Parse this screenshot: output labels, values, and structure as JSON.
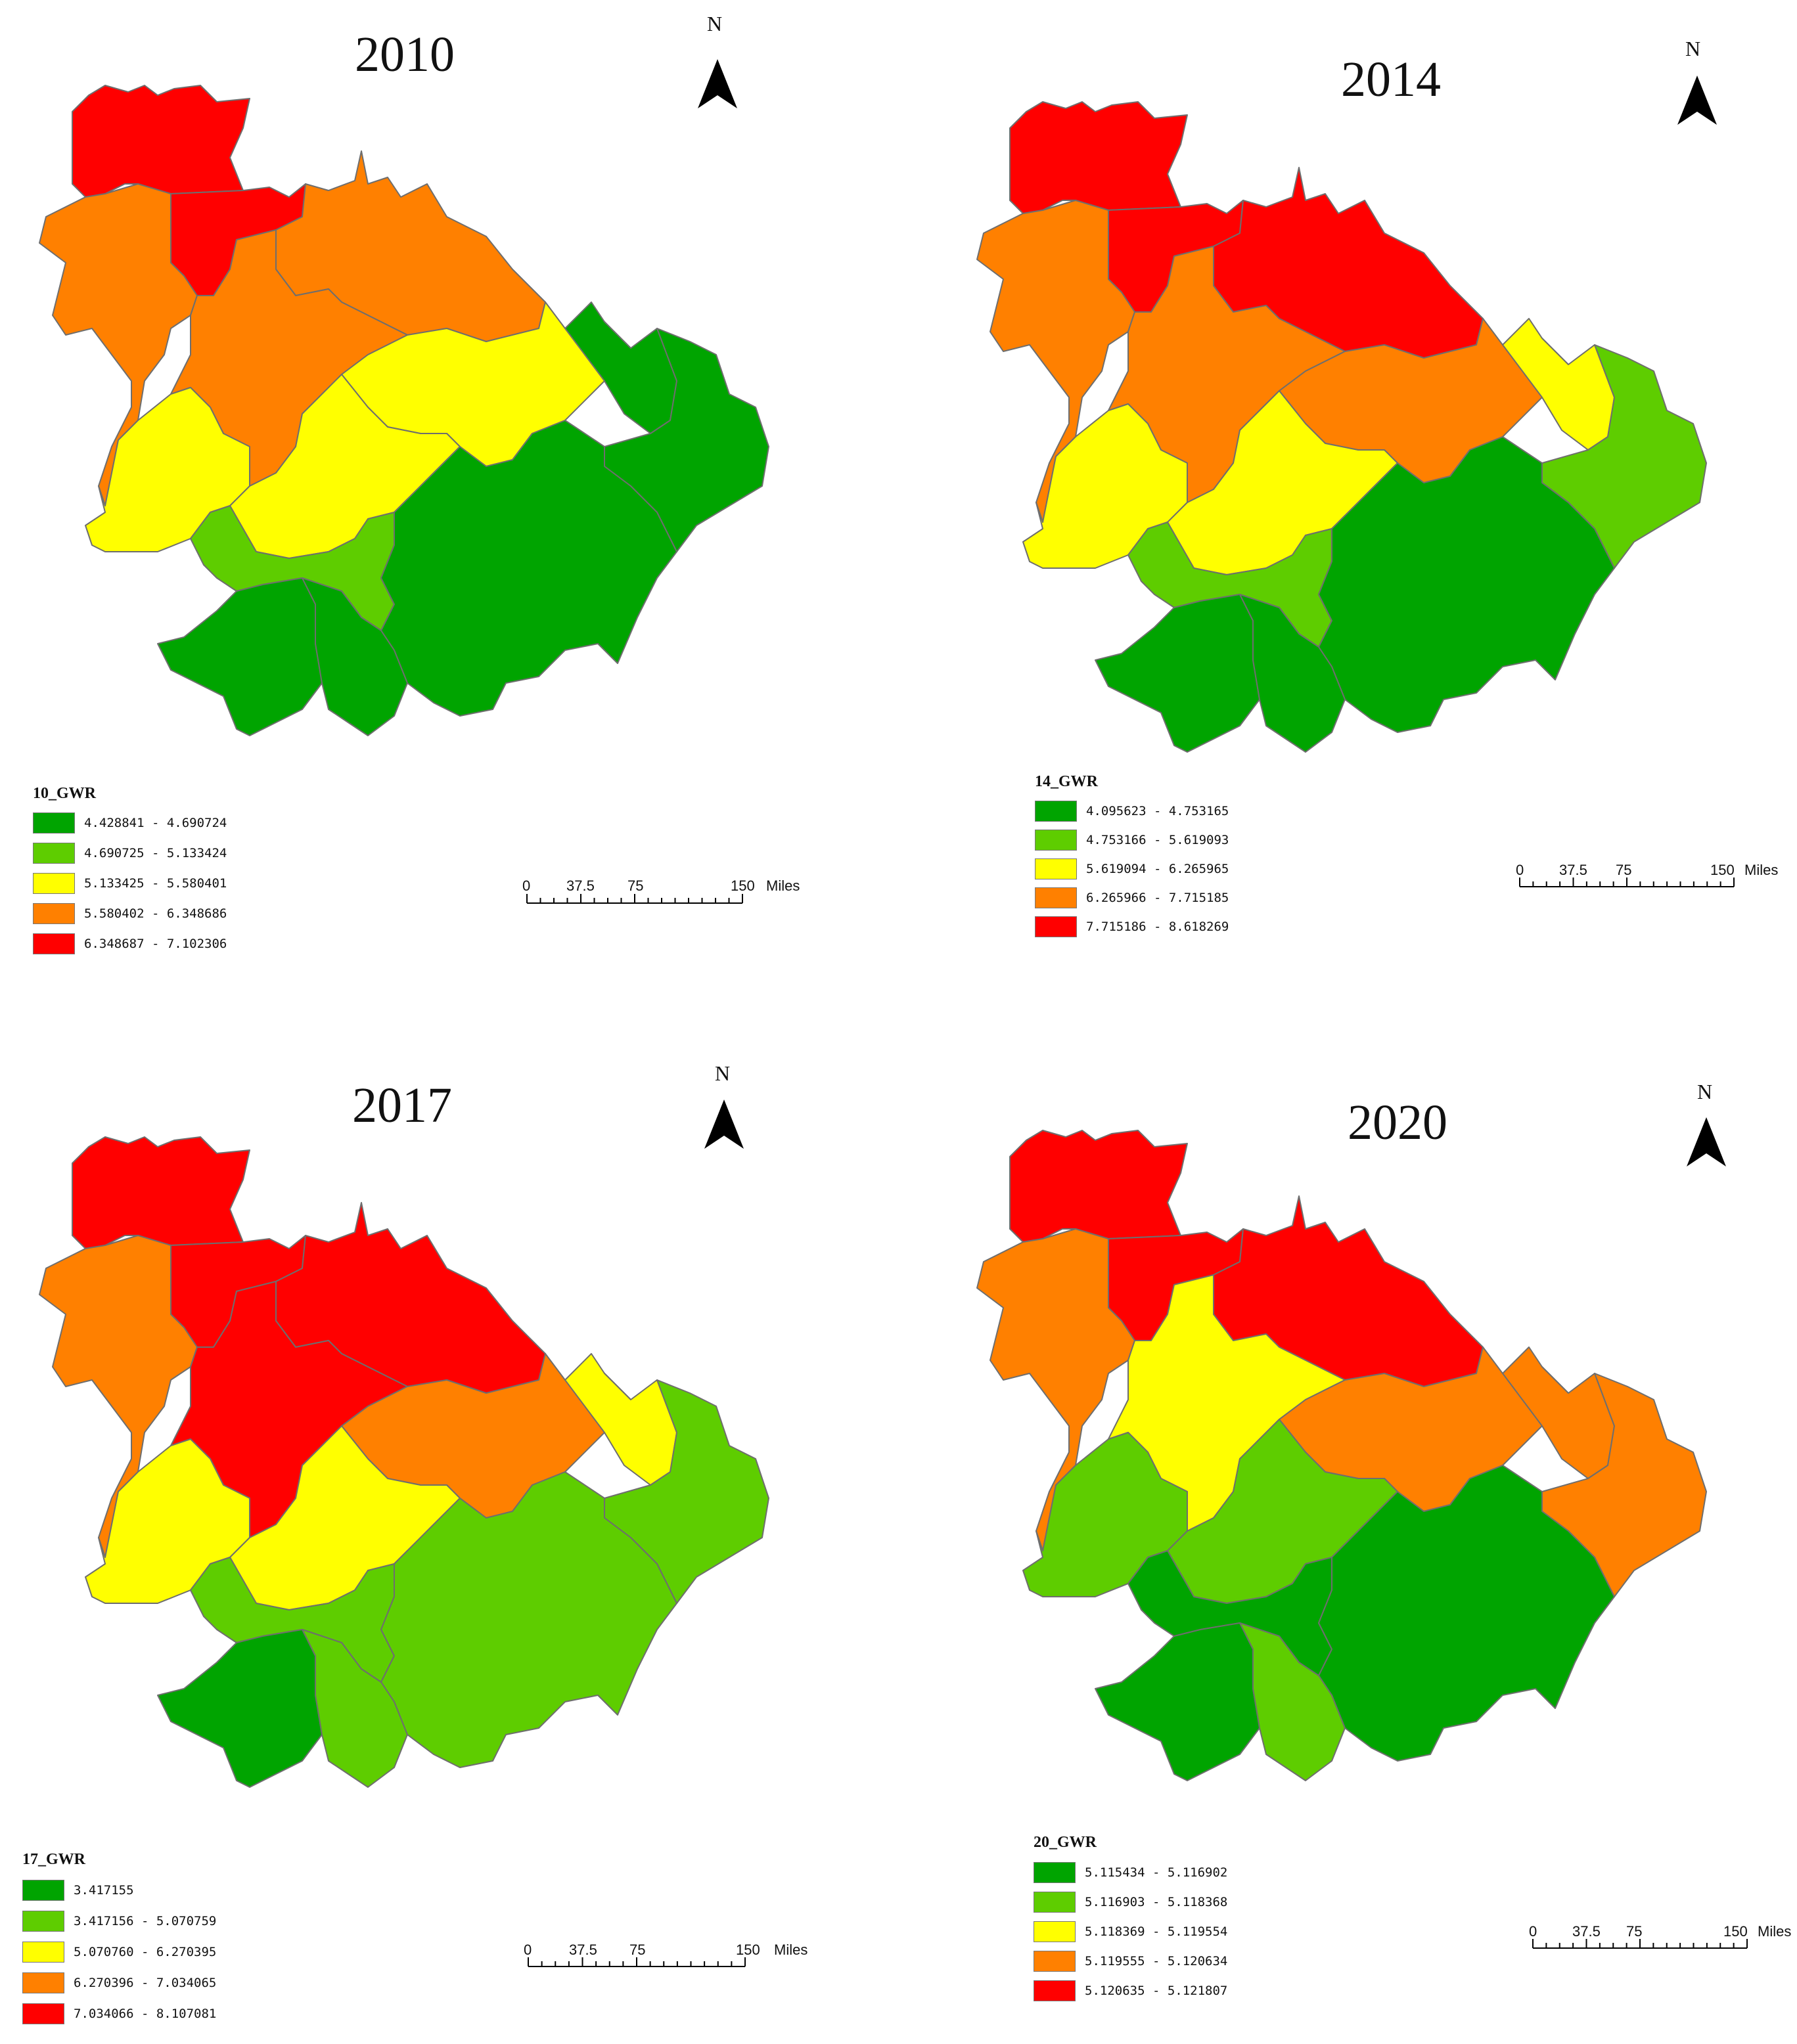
{
  "palette": {
    "green_dark": "#00a400",
    "green_light": "#5ecd00",
    "yellow": "#ffff00",
    "orange": "#ff8000",
    "red": "#ff0000"
  },
  "panels": [
    {
      "year": "2010",
      "legend_title": "10_GWR",
      "legend": [
        {
          "label": "4.428841 - 4.690724",
          "color": "#00a400"
        },
        {
          "label": "4.690725 - 5.133424",
          "color": "#5ecd00"
        },
        {
          "label": "5.133425 - 5.580401",
          "color": "#ffff00"
        },
        {
          "label": "5.580402 - 6.348686",
          "color": "#ff8000"
        },
        {
          "label": "6.348687 - 7.102306",
          "color": "#ff0000"
        }
      ],
      "region_classes": {
        "north_west": 5,
        "north_mid": 5,
        "north_east": 4,
        "west": 4,
        "centre": 4,
        "east_centre": 3,
        "west_south": 3,
        "mid_south": 3,
        "east_north": 1,
        "east_far": 1,
        "south_centre": 2,
        "south_mid": 1,
        "south_west": 1,
        "south_east": 1
      }
    },
    {
      "year": "2014",
      "legend_title": "14_GWR",
      "legend": [
        {
          "label": "4.095623 - 4.753165",
          "color": "#00a400"
        },
        {
          "label": "4.753166 - 5.619093",
          "color": "#5ecd00"
        },
        {
          "label": "5.619094 - 6.265965",
          "color": "#ffff00"
        },
        {
          "label": "6.265966 - 7.715185",
          "color": "#ff8000"
        },
        {
          "label": "7.715186 - 8.618269",
          "color": "#ff0000"
        }
      ],
      "region_classes": {
        "north_west": 5,
        "north_mid": 5,
        "north_east": 5,
        "west": 4,
        "centre": 4,
        "east_centre": 4,
        "west_south": 3,
        "mid_south": 3,
        "east_north": 3,
        "east_far": 2,
        "south_centre": 2,
        "south_mid": 1,
        "south_west": 1,
        "south_east": 1
      }
    },
    {
      "year": "2017",
      "legend_title": "17_GWR",
      "legend": [
        {
          "label": "3.417155",
          "color": "#00a400"
        },
        {
          "label": "3.417156 - 5.070759",
          "color": "#5ecd00"
        },
        {
          "label": "5.070760 - 6.270395",
          "color": "#ffff00"
        },
        {
          "label": "6.270396 - 7.034065",
          "color": "#ff8000"
        },
        {
          "label": "7.034066 - 8.107081",
          "color": "#ff0000"
        }
      ],
      "region_classes": {
        "north_west": 5,
        "north_mid": 5,
        "north_east": 5,
        "west": 4,
        "centre": 5,
        "east_centre": 4,
        "west_south": 3,
        "mid_south": 3,
        "east_north": 3,
        "east_far": 2,
        "south_centre": 2,
        "south_mid": 2,
        "south_west": 1,
        "south_east": 2
      }
    },
    {
      "year": "2020",
      "legend_title": "20_GWR",
      "legend": [
        {
          "label": "5.115434 - 5.116902",
          "color": "#00a400"
        },
        {
          "label": "5.116903 - 5.118368",
          "color": "#5ecd00"
        },
        {
          "label": "5.118369 - 5.119554",
          "color": "#ffff00"
        },
        {
          "label": "5.119555 - 5.120634",
          "color": "#ff8000"
        },
        {
          "label": "5.120635 - 5.121807",
          "color": "#ff0000"
        }
      ],
      "region_classes": {
        "north_west": 5,
        "north_mid": 5,
        "north_east": 5,
        "west": 4,
        "centre": 3,
        "east_centre": 4,
        "west_south": 2,
        "mid_south": 2,
        "east_north": 4,
        "east_far": 4,
        "south_centre": 1,
        "south_mid": 1,
        "south_west": 1,
        "south_east": 2
      }
    }
  ],
  "north_arrow": {
    "label": "N"
  },
  "scale_bar": {
    "ticks": [
      "0",
      "37.5",
      "75",
      "150"
    ],
    "unit": "Miles"
  }
}
